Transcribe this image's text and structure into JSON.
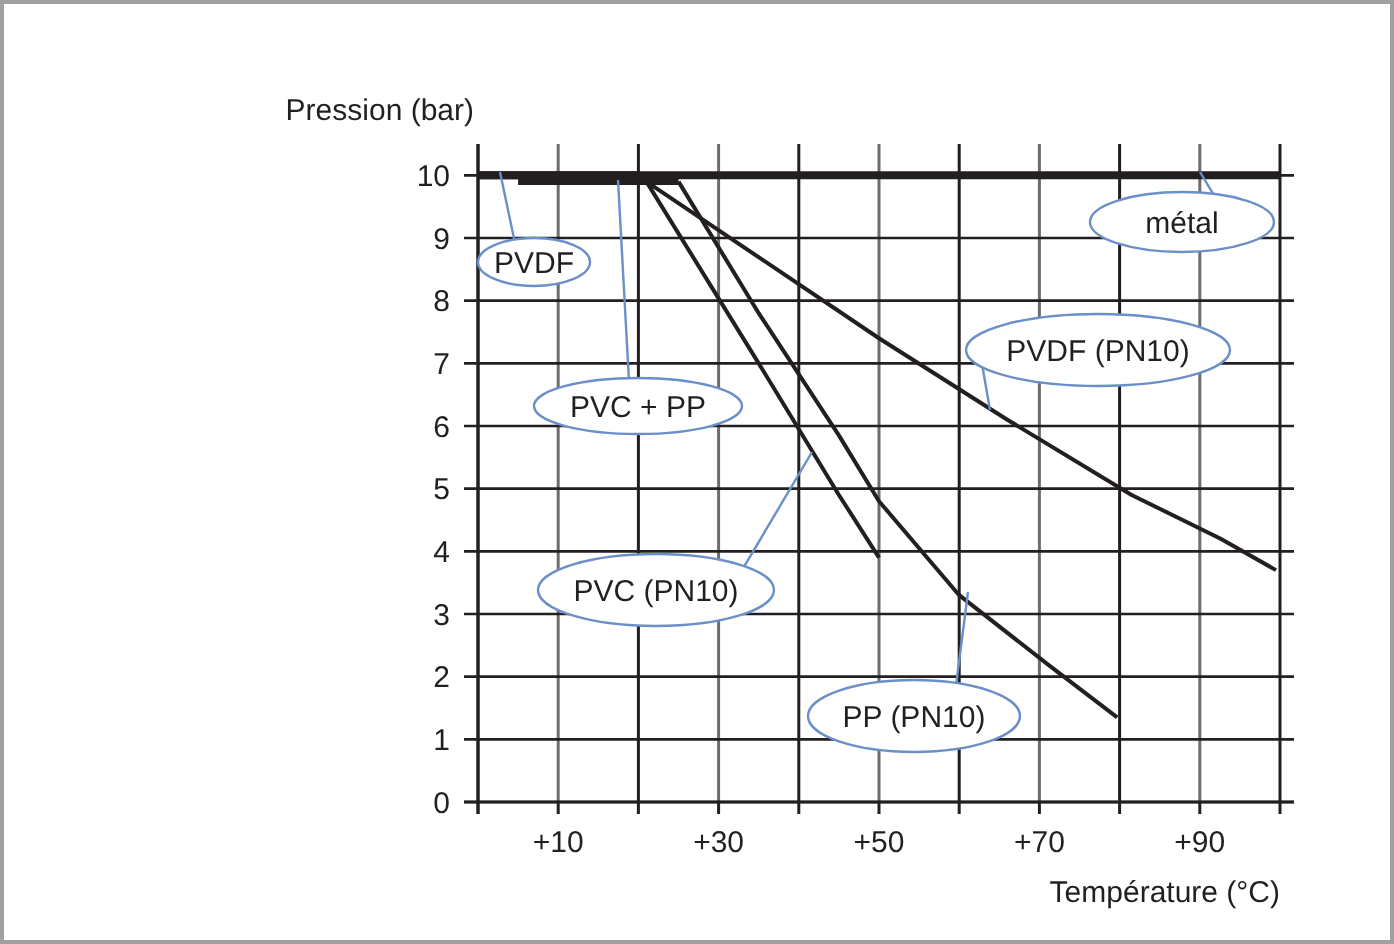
{
  "chart_data": {
    "type": "line",
    "xlabel": "Température (°C)",
    "ylabel": "Pression (bar)",
    "xlim": [
      0,
      100
    ],
    "ylim": [
      0,
      10.5
    ],
    "xticks": [
      {
        "value": 0,
        "label": null
      },
      "+10",
      {
        "value": 20,
        "label": null
      },
      {
        "value": 30,
        "label": "+30"
      },
      {
        "value": 40,
        "label": null
      },
      {
        "value": 50,
        "label": "+50"
      },
      {
        "value": 60,
        "label": null
      },
      {
        "value": 70,
        "label": "+70"
      },
      {
        "value": 80,
        "label": null
      },
      {
        "value": 90,
        "label": "+90"
      },
      {
        "value": 100,
        "label": null
      }
    ],
    "yticks": [
      0,
      1,
      2,
      3,
      4,
      5,
      6,
      7,
      8,
      9,
      10
    ],
    "grid": true,
    "legend": false,
    "marker": "none",
    "line_style": "solid",
    "series": [
      {
        "name": "métal",
        "color": "#231f20",
        "x": [
          0,
          100
        ],
        "values": [
          10,
          10
        ]
      },
      {
        "name": "PVDF",
        "color": "#231f20",
        "x": [
          0,
          20
        ],
        "values": [
          10,
          10
        ]
      },
      {
        "name": "PVC + PP",
        "color": "#231f20",
        "x": [
          5,
          25
        ],
        "values": [
          9.9,
          9.9
        ]
      },
      {
        "name": "PVDF (PN10)",
        "color": "#231f20",
        "x": [
          21,
          35.5,
          50,
          66,
          81.5,
          92.6,
          99.5
        ],
        "values": [
          9.9,
          8.65,
          7.4,
          6.1,
          4.9,
          4.2,
          3.7
        ]
      },
      {
        "name": "PVC (PN10)",
        "color": "#231f20",
        "x": [
          21,
          35,
          45,
          50
        ],
        "values": [
          9.9,
          7.0,
          4.9,
          3.9
        ]
      },
      {
        "name": "PP (PN10)",
        "color": "#231f20",
        "x": [
          25,
          35,
          45,
          50,
          60,
          71,
          79.7
        ],
        "values": [
          9.9,
          7.8,
          5.85,
          4.8,
          3.3,
          2.2,
          1.35
        ]
      }
    ]
  }
}
